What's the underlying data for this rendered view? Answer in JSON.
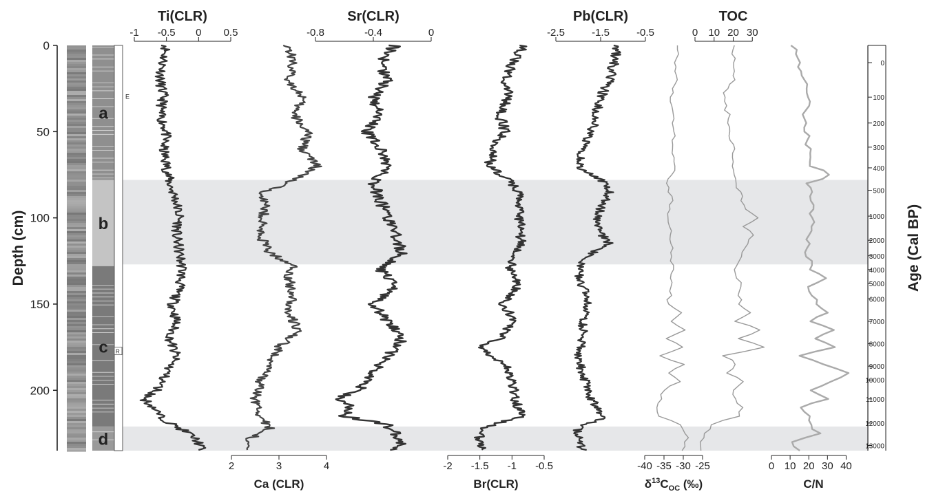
{
  "chart_data": {
    "type": "line",
    "y_axis": {
      "label": "Depth (cm)",
      "range": [
        0,
        235
      ],
      "ticks": [
        0,
        50,
        100,
        150,
        200
      ],
      "tick_labels": [
        "0",
        "50",
        "100",
        "150",
        "200"
      ]
    },
    "age_axis": {
      "label": "Age (Cal BP)",
      "ticks": [
        {
          "label": "0",
          "depth": 10
        },
        {
          "label": "100",
          "depth": 30
        },
        {
          "label": "200",
          "depth": 45
        },
        {
          "label": "300",
          "depth": 59
        },
        {
          "label": "400",
          "depth": 71
        },
        {
          "label": "500",
          "depth": 84
        },
        {
          "label": "1000",
          "depth": 99
        },
        {
          "label": "2000",
          "depth": 113
        },
        {
          "label": "3000",
          "depth": 122
        },
        {
          "label": "4000",
          "depth": 130
        },
        {
          "label": "5000",
          "depth": 138
        },
        {
          "label": "6000",
          "depth": 147
        },
        {
          "label": "7000",
          "depth": 160
        },
        {
          "label": "8000",
          "depth": 173
        },
        {
          "label": "9000",
          "depth": 186
        },
        {
          "label": "10000",
          "depth": 194
        },
        {
          "label": "11000",
          "depth": 205
        },
        {
          "label": "12000",
          "depth": 219
        },
        {
          "label": "13000",
          "depth": 232
        }
      ]
    },
    "units": [
      {
        "label": "a",
        "depth": [
          0,
          78
        ]
      },
      {
        "label": "b",
        "depth": [
          78,
          128
        ]
      },
      {
        "label": "c",
        "depth": [
          128,
          221
        ]
      },
      {
        "label": "d",
        "depth": [
          221,
          235
        ]
      }
    ],
    "core_markers": [
      "E",
      "R"
    ],
    "shaded_bands": [
      [
        78,
        127
      ],
      [
        221,
        235
      ]
    ],
    "series": [
      {
        "title": "Ti(CLR)",
        "axis_position": "top",
        "ticks": [
          -1,
          -0.5,
          0,
          0.5
        ],
        "tick_labels": [
          "-1",
          "-0.5",
          "0",
          "0.5"
        ],
        "range": [
          -1,
          0.5
        ],
        "color": "#333333",
        "depth": [
          0,
          10,
          20,
          30,
          40,
          50,
          60,
          70,
          80,
          90,
          100,
          110,
          120,
          130,
          140,
          150,
          160,
          170,
          180,
          190,
          200,
          205,
          210,
          215,
          220,
          225,
          230,
          235
        ],
        "values": [
          -0.5,
          -0.55,
          -0.6,
          -0.55,
          -0.6,
          -0.5,
          -0.55,
          -0.5,
          -0.45,
          -0.35,
          -0.3,
          -0.35,
          -0.3,
          -0.25,
          -0.3,
          -0.4,
          -0.35,
          -0.45,
          -0.35,
          -0.5,
          -0.65,
          -0.85,
          -0.7,
          -0.6,
          -0.4,
          -0.15,
          0.0,
          0.05
        ]
      },
      {
        "title": "Ca (CLR)",
        "axis_position": "bottom",
        "ticks": [
          2,
          3,
          4
        ],
        "tick_labels": [
          "2",
          "3",
          "4"
        ],
        "range": [
          2,
          4
        ],
        "color": "#444444",
        "depth": [
          0,
          10,
          20,
          30,
          40,
          50,
          60,
          70,
          78,
          85,
          95,
          110,
          120,
          128,
          135,
          145,
          155,
          165,
          175,
          185,
          195,
          205,
          215,
          222,
          228,
          235
        ],
        "values": [
          3.2,
          3.3,
          3.2,
          3.5,
          3.3,
          3.6,
          3.5,
          3.8,
          3.3,
          2.7,
          2.7,
          2.6,
          2.8,
          3.3,
          3.2,
          3.3,
          3.2,
          3.4,
          3.0,
          2.8,
          2.6,
          2.5,
          2.6,
          2.8,
          2.4,
          2.3
        ]
      },
      {
        "title": "Sr(CLR)",
        "axis_position": "top",
        "ticks": [
          -0.8,
          -0.4,
          0
        ],
        "tick_labels": [
          "-0.8",
          "-0.4",
          "0"
        ],
        "range": [
          -0.8,
          0
        ],
        "color": "#333333",
        "depth": [
          0,
          10,
          20,
          30,
          40,
          50,
          60,
          70,
          80,
          90,
          100,
          110,
          120,
          130,
          140,
          150,
          160,
          170,
          180,
          190,
          200,
          205,
          210,
          215,
          220,
          225,
          230,
          235
        ],
        "values": [
          -0.25,
          -0.35,
          -0.3,
          -0.4,
          -0.35,
          -0.45,
          -0.35,
          -0.3,
          -0.4,
          -0.35,
          -0.3,
          -0.25,
          -0.2,
          -0.35,
          -0.25,
          -0.4,
          -0.3,
          -0.2,
          -0.3,
          -0.4,
          -0.5,
          -0.65,
          -0.55,
          -0.6,
          -0.3,
          -0.25,
          -0.2,
          -0.25
        ]
      },
      {
        "title": "Br(CLR)",
        "axis_position": "bottom",
        "ticks": [
          -2,
          -1.5,
          -1,
          -0.5
        ],
        "tick_labels": [
          "-2",
          "-1.5",
          "-1",
          "-0.5"
        ],
        "range": [
          -2,
          -0.5
        ],
        "color": "#333333",
        "depth": [
          0,
          10,
          20,
          30,
          40,
          50,
          60,
          70,
          80,
          90,
          100,
          110,
          120,
          130,
          140,
          150,
          160,
          170,
          175,
          185,
          195,
          205,
          215,
          222,
          228,
          235
        ],
        "values": [
          -0.8,
          -1.0,
          -1.1,
          -1.05,
          -1.2,
          -1.1,
          -1.3,
          -1.35,
          -1.0,
          -0.85,
          -0.9,
          -0.85,
          -0.9,
          -1.05,
          -0.9,
          -1.15,
          -0.95,
          -1.2,
          -1.5,
          -1.1,
          -1.0,
          -0.95,
          -0.85,
          -1.5,
          -1.5,
          -1.45
        ]
      },
      {
        "title": "Pb(CLR)",
        "axis_position": "top",
        "ticks": [
          -2.5,
          -1.5,
          -0.5
        ],
        "tick_labels": [
          "-2.5",
          "-1.5",
          "-0.5"
        ],
        "range": [
          -2.5,
          -0.5
        ],
        "color": "#333333",
        "depth": [
          0,
          10,
          20,
          30,
          40,
          50,
          60,
          70,
          78,
          85,
          95,
          105,
          115,
          122,
          130,
          140,
          150,
          160,
          170,
          180,
          190,
          200,
          210,
          215,
          222,
          228,
          235
        ],
        "values": [
          -1.1,
          -1.2,
          -1.3,
          -1.5,
          -1.6,
          -1.7,
          -1.9,
          -2.0,
          -1.5,
          -1.3,
          -1.5,
          -1.6,
          -1.3,
          -1.8,
          -2.0,
          -1.9,
          -1.8,
          -1.9,
          -1.9,
          -2.0,
          -1.9,
          -1.8,
          -1.6,
          -1.4,
          -2.0,
          -2.0,
          -1.9
        ]
      },
      {
        "title": "δ13Coc (‰)",
        "axis_position": "bottom",
        "ticks": [
          -40,
          -35,
          -30,
          -25
        ],
        "tick_labels": [
          "-40",
          "-35",
          "-30",
          "-25"
        ],
        "range": [
          -40,
          -25
        ],
        "color": "#999999",
        "depth": [
          0,
          10,
          20,
          30,
          40,
          50,
          60,
          70,
          80,
          90,
          100,
          110,
          120,
          130,
          140,
          150,
          155,
          160,
          165,
          170,
          175,
          180,
          185,
          190,
          195,
          200,
          210,
          215,
          220,
          228,
          235
        ],
        "values": [
          -31,
          -32,
          -32,
          -33,
          -33,
          -32,
          -33,
          -32,
          -34,
          -33,
          -34,
          -33,
          -33,
          -33,
          -33,
          -34,
          -30,
          -33,
          -29,
          -34,
          -30,
          -36,
          -30,
          -34,
          -31,
          -35,
          -37,
          -36,
          -31,
          -29,
          -30
        ]
      },
      {
        "title": "TOC",
        "axis_position": "top",
        "ticks": [
          0,
          10,
          20,
          30
        ],
        "tick_labels": [
          "0",
          "10",
          "20",
          "30"
        ],
        "range": [
          0,
          40
        ],
        "color": "#999999",
        "depth": [
          0,
          10,
          20,
          30,
          40,
          50,
          60,
          70,
          78,
          85,
          95,
          100,
          105,
          110,
          120,
          130,
          140,
          150,
          155,
          160,
          165,
          170,
          175,
          180,
          185,
          190,
          195,
          200,
          210,
          215,
          220,
          228,
          235
        ],
        "values": [
          22,
          19,
          20,
          15,
          17,
          18,
          20,
          19,
          20,
          24,
          26,
          33,
          25,
          31,
          24,
          22,
          24,
          23,
          30,
          22,
          33,
          24,
          35,
          15,
          22,
          18,
          25,
          19,
          24,
          23,
          8,
          4,
          3
        ]
      },
      {
        "title": "C/N",
        "axis_position": "bottom",
        "ticks": [
          0,
          10,
          20,
          30,
          40
        ],
        "tick_labels": [
          "0",
          "10",
          "20",
          "30",
          "40"
        ],
        "range": [
          0,
          45
        ],
        "color": "#aaaaaa",
        "depth": [
          0,
          10,
          20,
          30,
          40,
          50,
          60,
          70,
          75,
          80,
          90,
          100,
          110,
          120,
          130,
          135,
          140,
          145,
          150,
          155,
          160,
          165,
          170,
          175,
          180,
          185,
          190,
          200,
          205,
          210,
          215,
          220,
          225,
          230,
          235
        ],
        "values": [
          12,
          15,
          17,
          20,
          18,
          19,
          20,
          22,
          32,
          20,
          21,
          22,
          20,
          19,
          22,
          28,
          19,
          22,
          25,
          31,
          20,
          33,
          22,
          34,
          16,
          28,
          42,
          22,
          29,
          17,
          19,
          21,
          25,
          12,
          14
        ]
      }
    ]
  }
}
